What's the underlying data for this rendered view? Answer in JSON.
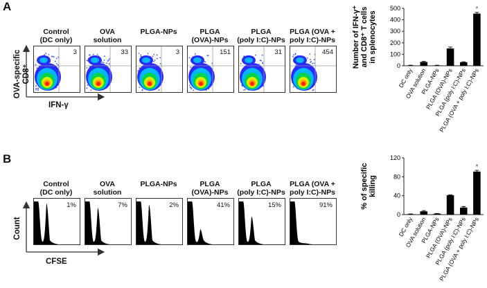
{
  "panels": {
    "a": {
      "letter": "A"
    },
    "b": {
      "letter": "B"
    }
  },
  "groups": [
    "Control\n(DC only)",
    "OVA\nsolution",
    "PLGA-NPs",
    "PLGA\n(OVA)-NPs",
    "PLGA\n(poly I:C)-NPs",
    "PLGA (OVA +\npoly I:C)-NPs"
  ],
  "flow": {
    "y_label": "OVA-specific\nCD8⁺",
    "x_label": "IFN-γ",
    "quadrant_values": [
      "3",
      "33",
      "3",
      "151",
      "31",
      "454"
    ]
  },
  "cfse": {
    "y_label": "Count",
    "x_label": "CFSE",
    "killing_values": [
      "1%",
      "7%",
      "2%",
      "41%",
      "15%",
      "91%"
    ],
    "second_peak_relative": [
      0.95,
      0.85,
      0.92,
      0.35,
      0.65,
      0.0
    ]
  },
  "chart_data": [
    {
      "type": "bar",
      "ylabel": "Number of IFN-γ⁺\nand CD8⁺ T cells\nin splenocytes",
      "categories": [
        "DC only",
        "OVA solution",
        "PLGA-NPs",
        "PLGA (OVA)-NPs",
        "PLGA (poly I:C)-NPs",
        "PLGA (OVA + poly I:C)-NPs"
      ],
      "values": [
        3,
        33,
        3,
        151,
        31,
        454
      ],
      "errors": [
        2,
        5,
        2,
        12,
        4,
        10
      ],
      "ylim": [
        0,
        500
      ],
      "yticks": [
        0,
        100,
        200,
        300,
        400,
        500
      ],
      "annotation": {
        "category_index": 5,
        "text": "*"
      }
    },
    {
      "type": "bar",
      "ylabel": "% of specific\nkilling",
      "categories": [
        "DC only",
        "OVA solution",
        "PLGA-NPs",
        "PLGA (OVA)-NPs",
        "PLGA (poly I:C)-NPs",
        "PLGA (OVA + poly I:C)-NPs"
      ],
      "values": [
        1,
        7,
        2,
        41,
        15,
        91
      ],
      "errors": [
        0.5,
        1.5,
        0.5,
        1,
        2,
        2.5
      ],
      "ylim": [
        0,
        120
      ],
      "yticks": [
        0,
        40,
        80,
        120
      ],
      "annotation": {
        "category_index": 5,
        "text": "*"
      }
    }
  ],
  "colors": {
    "bar": "#000000",
    "density_high": "#ff2200",
    "density_low": "#1a1aff"
  }
}
